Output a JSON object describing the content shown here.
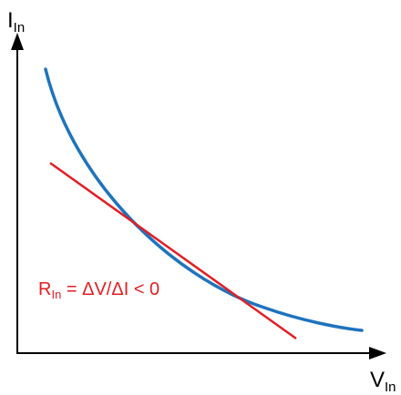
{
  "axes": {
    "y_label": {
      "main": "I",
      "sub": "In"
    },
    "x_label": {
      "main": "V",
      "sub": "In"
    }
  },
  "annotation": {
    "main": "R",
    "sub": "In",
    "rest": " = ΔV/ΔI < 0"
  },
  "colors": {
    "axis": "#000000",
    "curve": "#1f73bd",
    "tangent": "#e31e24",
    "annotation": "#e31e24"
  }
}
